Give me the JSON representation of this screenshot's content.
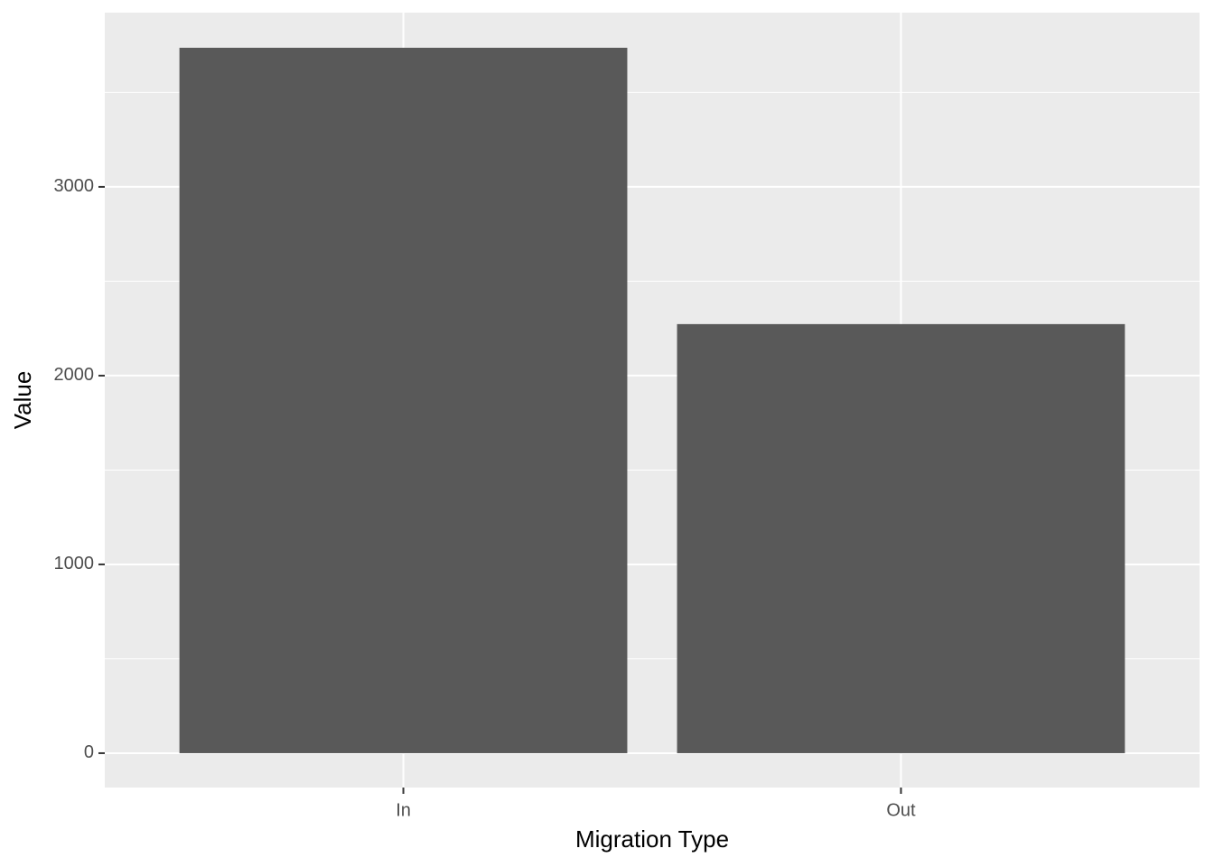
{
  "chart_data": {
    "type": "bar",
    "x_label": "Migration Type",
    "y_label": "Value",
    "categories": [
      "In",
      "Out"
    ],
    "values": [
      3737,
      2273
    ],
    "color": "#595959",
    "ylim": [
      -182,
      3923
    ],
    "yticks": [
      0,
      1000,
      2000,
      3000
    ],
    "yminorticks": [
      500,
      1500,
      2500,
      3500
    ],
    "grid": true,
    "panel_background": "#ebebeb"
  }
}
